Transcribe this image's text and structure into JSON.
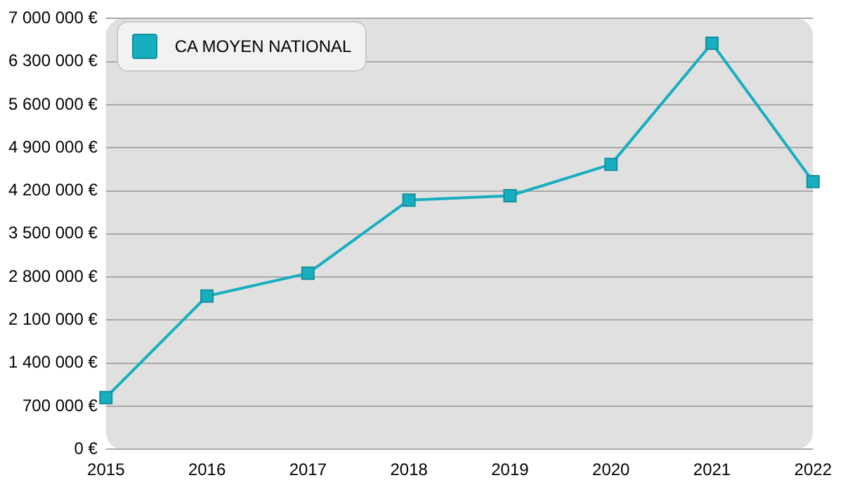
{
  "chart_data": {
    "type": "line",
    "categories": [
      "2015",
      "2016",
      "2017",
      "2018",
      "2019",
      "2020",
      "2021",
      "2022"
    ],
    "series": [
      {
        "name": "CA MOYEN NATIONAL",
        "color": "#17aec0",
        "values": [
          840000,
          2490000,
          2860000,
          4050000,
          4120000,
          4630000,
          6600000,
          4350000
        ]
      }
    ],
    "ylim": [
      0,
      7000000
    ],
    "yticks": [
      {
        "value": 0,
        "label": "0 €"
      },
      {
        "value": 700000,
        "label": "700 000 €"
      },
      {
        "value": 1400000,
        "label": "1 400 000 €"
      },
      {
        "value": 2100000,
        "label": "2 100 000 €"
      },
      {
        "value": 2800000,
        "label": "2 800 000 €"
      },
      {
        "value": 3500000,
        "label": "3 500 000 €"
      },
      {
        "value": 4200000,
        "label": "4 200 000 €"
      },
      {
        "value": 4900000,
        "label": "4 900 000 €"
      },
      {
        "value": 5600000,
        "label": "5 600 000 €"
      },
      {
        "value": 6300000,
        "label": "6 300 000 €"
      },
      {
        "value": 7000000,
        "label": "7 000 000 €"
      }
    ],
    "grid": "y",
    "legend": "top left",
    "marker": "square",
    "line_style": "solid"
  }
}
